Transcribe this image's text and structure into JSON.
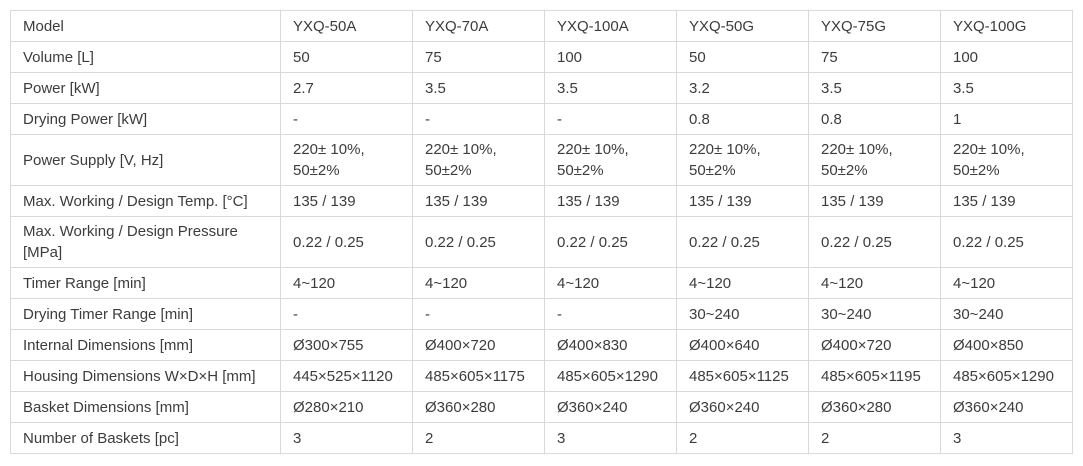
{
  "colors": {
    "background": "#ffffff",
    "border": "#d9d9d9",
    "text": "#3c3c3c"
  },
  "spec_table": {
    "rows": [
      {
        "label": "Model",
        "values": [
          "YXQ-50A",
          "YXQ-70A",
          "YXQ-100A",
          "YXQ-50G",
          "YXQ-75G",
          "YXQ-100G"
        ]
      },
      {
        "label": "Volume [L]",
        "values": [
          "50",
          "75",
          "100",
          "50",
          "75",
          "100"
        ]
      },
      {
        "label": "Power [kW]",
        "values": [
          "2.7",
          "3.5",
          "3.5",
          "3.2",
          "3.5",
          "3.5"
        ]
      },
      {
        "label": "Drying Power [kW]",
        "values": [
          "-",
          "-",
          "-",
          "0.8",
          "0.8",
          "1"
        ]
      },
      {
        "label": "Power Supply [V, Hz]",
        "values": [
          "220± 10%,\n50±2%",
          "220± 10%,\n50±2%",
          "220± 10%,\n50±2%",
          "220± 10%,\n50±2%",
          "220± 10%,\n50±2%",
          "220± 10%,\n50±2%"
        ]
      },
      {
        "label": "Max. Working / Design Temp. [°C]",
        "values": [
          "135 / 139",
          "135 / 139",
          "135 / 139",
          "135 / 139",
          "135 / 139",
          "135 / 139"
        ]
      },
      {
        "label": "Max. Working / Design Pressure [MPa]",
        "values": [
          "0.22 / 0.25",
          "0.22 / 0.25",
          "0.22 / 0.25",
          "0.22 / 0.25",
          "0.22 / 0.25",
          "0.22 / 0.25"
        ]
      },
      {
        "label": "Timer Range [min]",
        "values": [
          "4~120",
          "4~120",
          "4~120",
          "4~120",
          "4~120",
          "4~120"
        ]
      },
      {
        "label": "Drying Timer Range [min]",
        "values": [
          "-",
          "-",
          "-",
          "30~240",
          "30~240",
          "30~240"
        ]
      },
      {
        "label": "Internal Dimensions [mm]",
        "values": [
          "Ø300×755",
          "Ø400×720",
          "Ø400×830",
          "Ø400×640",
          "Ø400×720",
          "Ø400×850"
        ]
      },
      {
        "label": "Housing Dimensions W×D×H [mm]",
        "values": [
          "445×525×1120",
          "485×605×1175",
          "485×605×1290",
          "485×605×1125",
          "485×605×1195",
          "485×605×1290"
        ]
      },
      {
        "label": "Basket Dimensions [mm]",
        "values": [
          "Ø280×210",
          "Ø360×280",
          "Ø360×240",
          "Ø360×240",
          "Ø360×280",
          "Ø360×240"
        ]
      },
      {
        "label": "Number of Baskets [pc]",
        "values": [
          "3",
          "2",
          "3",
          "2",
          "2",
          "3"
        ]
      }
    ]
  }
}
